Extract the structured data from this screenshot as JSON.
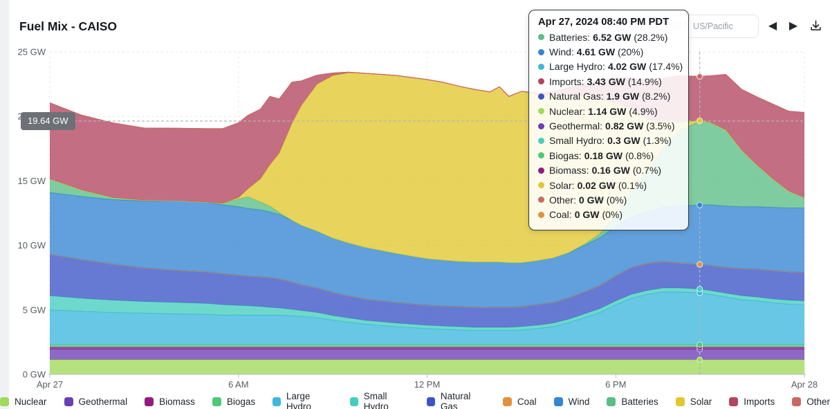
{
  "header": {
    "title": "Fuel Mix - CAISO"
  },
  "toolbar": {
    "date_value": "Apr 27, 2024",
    "timezone": "US/Pacific",
    "prev_glyph": "◀",
    "next_glyph": "▶",
    "icons": [
      "calendar-icon",
      "chevron-left-icon",
      "chevron-right-icon",
      "download-icon"
    ]
  },
  "tooltip": {
    "title": "Apr 27, 2024 08:40 PM PDT",
    "rows": [
      {
        "label": "Batteries:",
        "value": "6.52 GW",
        "pct": "(28.2%)",
        "color": "#5ABE85"
      },
      {
        "label": "Wind:",
        "value": "4.61 GW",
        "pct": "(20%)",
        "color": "#3585D2"
      },
      {
        "label": "Large Hydro:",
        "value": "4.02 GW",
        "pct": "(17.4%)",
        "color": "#3EB7DE"
      },
      {
        "label": "Imports:",
        "value": "3.43 GW",
        "pct": "(14.9%)",
        "color": "#B34560"
      },
      {
        "label": "Natural Gas:",
        "value": "1.9 GW",
        "pct": "(8.2%)",
        "color": "#3C55C6"
      },
      {
        "label": "Nuclear:",
        "value": "1.14 GW",
        "pct": "(4.9%)",
        "color": "#A0D95B"
      },
      {
        "label": "Geothermal:",
        "value": "0.82 GW",
        "pct": "(3.5%)",
        "color": "#6A3FB5"
      },
      {
        "label": "Small Hydro:",
        "value": "0.3 GW",
        "pct": "(1.3%)",
        "color": "#46CDBE"
      },
      {
        "label": "Biogas:",
        "value": "0.18 GW",
        "pct": "(0.8%)",
        "color": "#4FC878"
      },
      {
        "label": "Biomass:",
        "value": "0.16 GW",
        "pct": "(0.7%)",
        "color": "#931A80"
      },
      {
        "label": "Solar:",
        "value": "0.02 GW",
        "pct": "(0.1%)",
        "color": "#E2C72E"
      },
      {
        "label": "Other:",
        "value": "0 GW",
        "pct": "(0%)",
        "color": "#C96A62"
      },
      {
        "label": "Coal:",
        "value": "0 GW",
        "pct": "(0%)",
        "color": "#E0913F"
      }
    ]
  },
  "legend": {
    "items": [
      {
        "label": "Nuclear",
        "color": "#A0D95B"
      },
      {
        "label": "Geothermal",
        "color": "#6A3FB5"
      },
      {
        "label": "Biomass",
        "color": "#931A80"
      },
      {
        "label": "Biogas",
        "color": "#4FC878"
      },
      {
        "label": "Large Hydro",
        "color": "#3EB7DE"
      },
      {
        "label": "Small Hydro",
        "color": "#46CDBE"
      },
      {
        "label": "Natural Gas",
        "color": "#3C55C6"
      },
      {
        "label": "Coal",
        "color": "#E0913F"
      },
      {
        "label": "Wind",
        "color": "#3585D2"
      },
      {
        "label": "Batteries",
        "color": "#5ABE85"
      },
      {
        "label": "Solar",
        "color": "#E2C72E"
      },
      {
        "label": "Imports",
        "color": "#B34560"
      },
      {
        "label": "Other",
        "color": "#C96A62"
      }
    ]
  },
  "chart_data": {
    "type": "area",
    "stacked": true,
    "title": "Fuel Mix - CAISO",
    "unit": "GW",
    "x_hours": [
      0,
      1,
      2,
      3,
      4,
      5,
      5.5,
      6,
      6.3,
      6.7,
      7,
      7.3,
      7.7,
      8,
      8.5,
      9,
      9.5,
      10,
      11,
      12,
      12.5,
      13,
      13.5,
      14,
      14.3,
      14.6,
      15,
      15.5,
      16,
      16.5,
      17,
      17.5,
      18,
      18.5,
      19,
      19.5,
      20,
      20.67,
      21,
      21.5,
      22,
      22.5,
      23,
      23.5,
      24
    ],
    "x_axis": {
      "ticks": [
        {
          "hour": 0,
          "label": "Apr 27"
        },
        {
          "hour": 6,
          "label": "6 AM"
        },
        {
          "hour": 12,
          "label": "12 PM"
        },
        {
          "hour": 18,
          "label": "6 PM"
        },
        {
          "hour": 24,
          "label": "Apr 28"
        }
      ]
    },
    "y_axis": {
      "min": 0,
      "max": 25,
      "grid": true,
      "ticks": [
        {
          "gw": 0,
          "label": "0 GW"
        },
        {
          "gw": 5,
          "label": "5 GW"
        },
        {
          "gw": 10,
          "label": "10 GW"
        },
        {
          "gw": 15,
          "label": "15 GW"
        },
        {
          "gw": 20,
          "label": "20 GW"
        },
        {
          "gw": 25,
          "label": "25 GW"
        }
      ]
    },
    "series": [
      {
        "name": "Nuclear",
        "color": "#A0D95B",
        "values": 1.14
      },
      {
        "name": "Geothermal",
        "color": "#6A3FB5",
        "values": 0.82
      },
      {
        "name": "Biomass",
        "color": "#931A80",
        "values": 0.16
      },
      {
        "name": "Biogas",
        "color": "#4FC878",
        "values": 0.18
      },
      {
        "name": "Large Hydro",
        "color": "#3EB7DE",
        "values": [
          2.7,
          2.6,
          2.5,
          2.45,
          2.4,
          2.35,
          2.3,
          2.3,
          2.3,
          2.3,
          2.3,
          2.3,
          2.25,
          2.2,
          2.1,
          1.9,
          1.75,
          1.6,
          1.4,
          1.25,
          1.2,
          1.15,
          1.1,
          1.1,
          1.1,
          1.1,
          1.15,
          1.25,
          1.4,
          1.7,
          2.1,
          2.5,
          3.1,
          3.6,
          3.9,
          4.1,
          4.1,
          4.02,
          3.9,
          3.7,
          3.5,
          3.4,
          3.25,
          3.15,
          3.1
        ]
      },
      {
        "name": "Small Hydro",
        "color": "#46CDBE",
        "values": [
          1.1,
          1.0,
          0.95,
          0.9,
          0.88,
          0.85,
          0.8,
          0.75,
          0.72,
          0.66,
          0.6,
          0.55,
          0.5,
          0.45,
          0.4,
          0.36,
          0.33,
          0.3,
          0.28,
          0.26,
          0.25,
          0.25,
          0.25,
          0.25,
          0.25,
          0.25,
          0.25,
          0.26,
          0.27,
          0.28,
          0.29,
          0.3,
          0.3,
          0.3,
          0.3,
          0.3,
          0.3,
          0.3,
          0.3,
          0.3,
          0.3,
          0.3,
          0.3,
          0.3,
          0.3
        ]
      },
      {
        "name": "Natural Gas",
        "color": "#3C55C6",
        "values": [
          3.2,
          3.0,
          2.8,
          2.6,
          2.5,
          2.45,
          2.4,
          2.35,
          2.3,
          2.3,
          2.3,
          2.25,
          2.1,
          2.0,
          1.9,
          1.8,
          1.7,
          1.65,
          1.6,
          1.55,
          1.55,
          1.55,
          1.55,
          1.55,
          1.55,
          1.55,
          1.55,
          1.6,
          1.6,
          1.65,
          1.7,
          1.8,
          1.95,
          2.1,
          2.1,
          2.05,
          1.95,
          1.9,
          1.95,
          2.0,
          2.1,
          2.15,
          2.2,
          2.2,
          2.2
        ]
      },
      {
        "name": "Coal",
        "color": "#E0913F",
        "values": 0
      },
      {
        "name": "Wind",
        "color": "#3585D2",
        "values": [
          4.8,
          4.9,
          5.0,
          5.2,
          5.4,
          5.4,
          5.35,
          5.3,
          5.25,
          5.2,
          5.1,
          5.0,
          4.8,
          4.6,
          4.4,
          4.2,
          4.1,
          4.0,
          3.8,
          3.6,
          3.55,
          3.5,
          3.5,
          3.5,
          3.5,
          3.45,
          3.4,
          3.4,
          3.45,
          3.5,
          3.6,
          3.7,
          3.8,
          3.9,
          4.0,
          4.2,
          4.4,
          4.61,
          4.7,
          4.75,
          4.8,
          4.85,
          4.9,
          4.95,
          5.0
        ]
      },
      {
        "name": "Batteries",
        "color": "#5ABE85",
        "values": [
          1.05,
          0.5,
          0.15,
          0.05,
          0,
          0,
          0.1,
          0.6,
          0.9,
          0.6,
          0.45,
          0.15,
          0,
          0,
          0,
          0,
          0,
          0,
          0,
          0,
          0,
          0,
          0,
          0,
          0,
          0,
          0,
          0,
          0,
          0,
          0.1,
          0.3,
          0.9,
          1.9,
          3.2,
          4.6,
          5.8,
          6.52,
          6.4,
          5.9,
          4.4,
          3.2,
          2.2,
          1.3,
          0.8
        ]
      },
      {
        "name": "Solar",
        "color": "#E2C72E",
        "values": [
          0,
          0,
          0,
          0,
          0,
          0,
          0,
          0.1,
          0.6,
          1.8,
          3.2,
          4.6,
          7.5,
          9.3,
          11.4,
          12.6,
          13.2,
          13.5,
          13.8,
          13.9,
          13.8,
          13.6,
          13.4,
          13.2,
          13.6,
          12.9,
          13.3,
          12.9,
          12.6,
          12.2,
          11.5,
          10.4,
          8.7,
          6.4,
          4.0,
          2.0,
          0.7,
          0.02,
          0,
          0,
          0,
          0,
          0,
          0,
          0
        ]
      },
      {
        "name": "Imports",
        "color": "#B34560",
        "values": [
          5.9,
          5.8,
          5.8,
          5.6,
          5.6,
          5.7,
          5.8,
          5.8,
          5.7,
          5.4,
          5.3,
          4.2,
          3.2,
          1.9,
          0.7,
          0.2,
          0.05,
          0,
          0,
          0,
          0,
          0,
          0,
          0,
          0,
          0,
          0,
          0.1,
          0.3,
          0.6,
          1.0,
          1.5,
          2.0,
          2.5,
          3.0,
          3.4,
          3.6,
          3.43,
          3.6,
          4.3,
          4.7,
          5.3,
          5.8,
          6.2,
          6.6
        ]
      },
      {
        "name": "Other",
        "color": "#C96A62",
        "values": 0
      }
    ],
    "crosshair": {
      "hour": 20.67,
      "value_gw": 19.64,
      "label": "19.64 GW"
    }
  }
}
